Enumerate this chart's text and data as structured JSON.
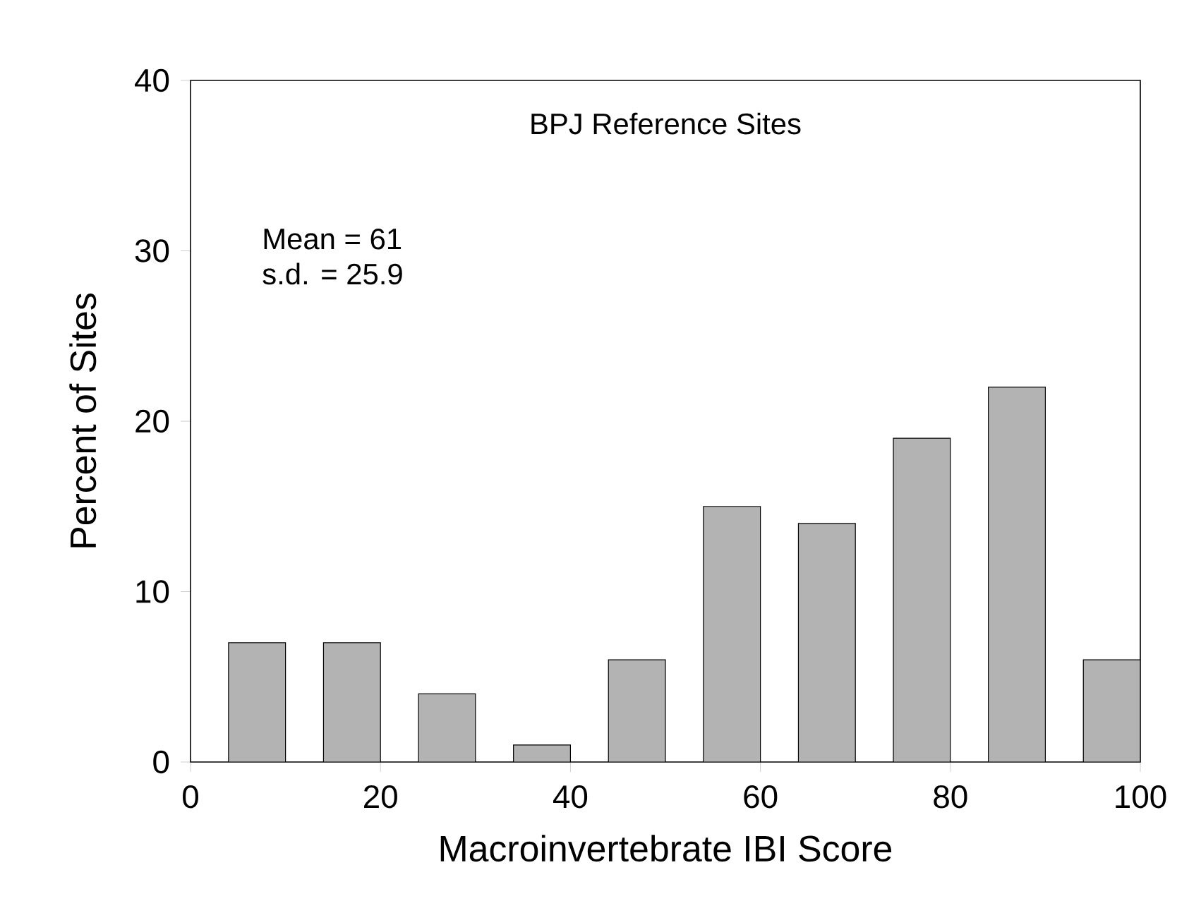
{
  "chart_data": {
    "type": "bar",
    "title": "BPJ Reference Sites",
    "xlabel": "Macroinvertebrate IBI Score",
    "ylabel": "Percent of Sites",
    "x": [
      7,
      17,
      27,
      37,
      47,
      57,
      67,
      77,
      87,
      97
    ],
    "values": [
      7,
      7,
      4,
      1,
      6,
      15,
      14,
      19,
      22,
      6
    ],
    "color": "#b3b3b3",
    "xlim": [
      0,
      100
    ],
    "xticks": [
      0,
      20,
      40,
      60,
      80,
      100
    ],
    "ylim": [
      0,
      40
    ],
    "yticks": [
      0,
      10,
      20,
      30,
      40
    ],
    "annotations": [
      "Mean = 61",
      "s.d. = 25.9"
    ],
    "grid": false
  }
}
